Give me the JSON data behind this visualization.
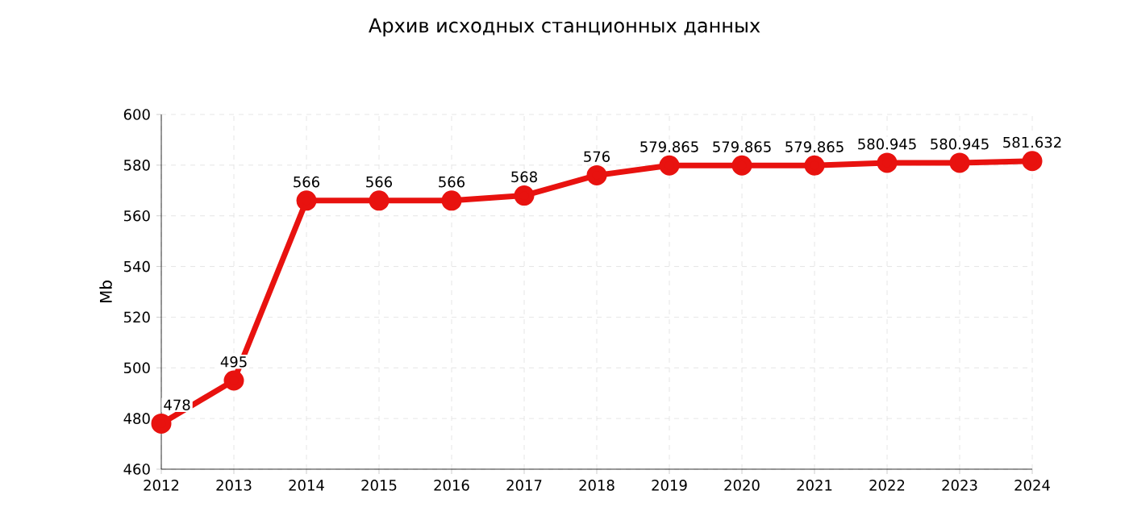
{
  "chart_data": {
    "type": "line",
    "title": "Архив исходных станционных данных",
    "ylabel": "Mb",
    "categories": [
      "2012",
      "2013",
      "2014",
      "2015",
      "2016",
      "2017",
      "2018",
      "2019",
      "2020",
      "2021",
      "2022",
      "2023",
      "2024"
    ],
    "series": [
      {
        "color": "#e8120f",
        "values": [
          478,
          495,
          566,
          566,
          566,
          568,
          576,
          579.865,
          579.865,
          579.865,
          580.945,
          580.945,
          581.632
        ],
        "value_labels": [
          "478",
          "495",
          "566",
          "566",
          "566",
          "568",
          "576",
          "579.865",
          "579.865",
          "579.865",
          "580.945",
          "580.945",
          "581.632"
        ]
      }
    ],
    "ylim": [
      460,
      600
    ],
    "yticks": [
      460,
      480,
      500,
      520,
      540,
      560,
      580,
      600
    ],
    "grid": true,
    "marker": "circle",
    "line_style": "solid"
  }
}
